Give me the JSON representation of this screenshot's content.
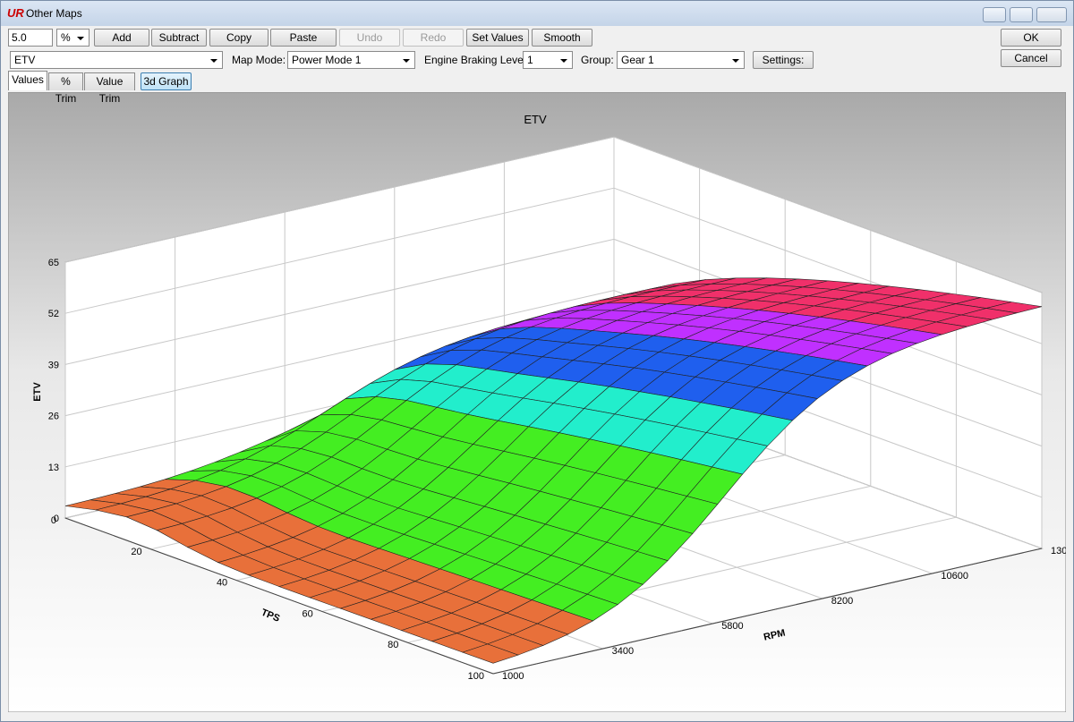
{
  "window": {
    "title": "Other Maps"
  },
  "toolbar": {
    "step_value": "5.0",
    "step_unit": "%",
    "buttons": [
      "Add",
      "Subtract",
      "Copy",
      "Paste",
      "Undo",
      "Redo",
      "Set Values",
      "Smooth"
    ],
    "ok": "OK",
    "cancel": "Cancel"
  },
  "options": {
    "map": "ETV",
    "map_mode_label": "Map Mode:",
    "map_mode": "Power Mode 1",
    "engine_braking_label": "Engine Braking Level:",
    "engine_braking": "1",
    "group_label": "Group:",
    "group": "Gear 1",
    "settings": "Settings:"
  },
  "tabs": [
    "Values",
    "% Trim",
    "Value Trim"
  ],
  "graph_button": "3d Graph",
  "graph": {
    "title": "ETV",
    "z_label": "ETV",
    "z_ticks": [
      0,
      13,
      26,
      39,
      52,
      65
    ],
    "tps_label": "TPS",
    "tps_ticks": [
      0,
      20,
      40,
      60,
      80,
      100
    ],
    "rpm_label": "RPM",
    "rpm_ticks": [
      1000,
      3400,
      5800,
      8200,
      10600,
      130
    ]
  }
}
